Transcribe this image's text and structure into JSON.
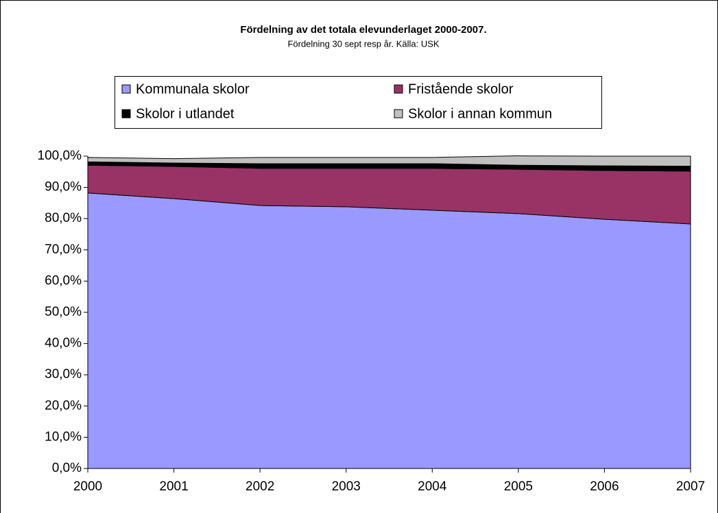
{
  "chart_data": {
    "type": "stacked_area",
    "title": "Fördelning av det totala elevunderlaget 2000-2007.",
    "subtitle": "Fördelning 30 sept resp år. Källa: USK",
    "categories": [
      "2000",
      "2001",
      "2002",
      "2003",
      "2004",
      "2005",
      "2006",
      "2007"
    ],
    "series": [
      {
        "name": "Kommunala skolor",
        "color": "#9999ff",
        "values": [
          88.2,
          86.4,
          84.2,
          83.8,
          82.7,
          81.6,
          79.8,
          78.3
        ]
      },
      {
        "name": "Fristående skolor",
        "color": "#993366",
        "values": [
          8.9,
          10.3,
          11.9,
          12.3,
          13.4,
          14.2,
          15.6,
          16.9
        ]
      },
      {
        "name": "Skolor i utlandet",
        "color": "#000000",
        "values": [
          1.1,
          1.1,
          1.5,
          1.5,
          1.5,
          1.3,
          1.5,
          1.6
        ]
      },
      {
        "name": "Skolor i annan kommun",
        "color": "#c0c0c0",
        "values": [
          1.4,
          1.4,
          2.0,
          2.0,
          2.0,
          3.0,
          3.1,
          3.2
        ]
      }
    ],
    "ylim": [
      0,
      100
    ],
    "yticks": [
      {
        "value": 0,
        "label": "0,0%"
      },
      {
        "value": 10,
        "label": "10,0%"
      },
      {
        "value": 20,
        "label": "20,0%"
      },
      {
        "value": 30,
        "label": "30,0%"
      },
      {
        "value": 40,
        "label": "40,0%"
      },
      {
        "value": 50,
        "label": "50,0%"
      },
      {
        "value": 60,
        "label": "60,0%"
      },
      {
        "value": 70,
        "label": "70,0%"
      },
      {
        "value": 80,
        "label": "80,0%"
      },
      {
        "value": 90,
        "label": "90,0%"
      },
      {
        "value": 100,
        "label": "100,0%"
      }
    ],
    "grid": false,
    "legend": "top"
  }
}
